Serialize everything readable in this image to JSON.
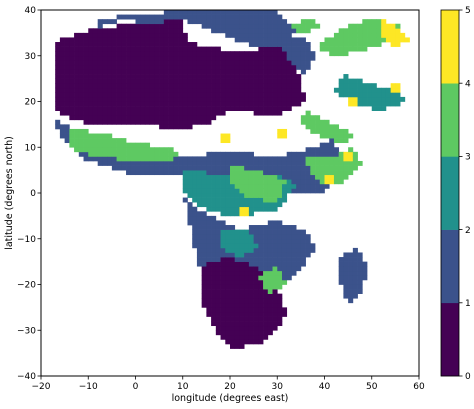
{
  "chart_data": {
    "type": "heatmap",
    "title": "",
    "xlabel": "longitude (degrees east)",
    "ylabel": "latitude (degrees north)",
    "xlim": [
      -20,
      60
    ],
    "ylim": [
      -40,
      40
    ],
    "xticks": [
      -20,
      -10,
      0,
      10,
      20,
      30,
      40,
      50,
      60
    ],
    "yticks": [
      -40,
      -30,
      -20,
      -10,
      0,
      10,
      20,
      30,
      40
    ],
    "colorbar": {
      "min": 0,
      "max": 5,
      "ticks": [
        0,
        1,
        2,
        3,
        4,
        5
      ],
      "levels": 5
    },
    "colors": [
      "#440154",
      "#3b528b",
      "#21918c",
      "#5ec962",
      "#fde725"
    ],
    "cell_size_deg": 1.0,
    "grid": false,
    "legend": "colorbar-right",
    "description_note": "",
    "regions": [
      {
        "class": 0,
        "polygon": [
          [
            -17,
            33
          ],
          [
            -8,
            36
          ],
          [
            10,
            38
          ],
          [
            11,
            33
          ],
          [
            20,
            31
          ],
          [
            32,
            32
          ],
          [
            34,
            28
          ],
          [
            36,
            20
          ],
          [
            30,
            17
          ],
          [
            20,
            18
          ],
          [
            15,
            15
          ],
          [
            10,
            14
          ],
          [
            0,
            15
          ],
          [
            -10,
            15
          ],
          [
            -17,
            18
          ],
          [
            -17,
            28
          ]
        ]
      },
      {
        "class": 1,
        "polygon": [
          [
            -8,
            36
          ],
          [
            -2,
            38
          ],
          [
            10,
            38
          ],
          [
            20,
            34
          ],
          [
            25,
            32
          ],
          [
            32,
            32
          ],
          [
            34,
            36
          ],
          [
            30,
            40
          ],
          [
            12,
            40
          ],
          [
            0,
            39
          ],
          [
            -8,
            38
          ]
        ]
      },
      {
        "class": 1,
        "polygon": [
          [
            -17,
            16
          ],
          [
            -10,
            12
          ],
          [
            0,
            10
          ],
          [
            10,
            8
          ],
          [
            20,
            9
          ],
          [
            30,
            8
          ],
          [
            38,
            10
          ],
          [
            42,
            12
          ],
          [
            44,
            5
          ],
          [
            40,
            0
          ],
          [
            32,
            0
          ],
          [
            20,
            3
          ],
          [
            10,
            4
          ],
          [
            0,
            4
          ],
          [
            -10,
            7
          ],
          [
            -16,
            12
          ]
        ]
      },
      {
        "class": 2,
        "polygon": [
          [
            10,
            5
          ],
          [
            20,
            4
          ],
          [
            30,
            4
          ],
          [
            34,
            2
          ],
          [
            30,
            -4
          ],
          [
            20,
            -5
          ],
          [
            14,
            -3
          ],
          [
            10,
            0
          ]
        ]
      },
      {
        "class": 1,
        "polygon": [
          [
            10,
            0
          ],
          [
            14,
            -4
          ],
          [
            22,
            -8
          ],
          [
            30,
            -6
          ],
          [
            36,
            -8
          ],
          [
            38,
            -12
          ],
          [
            34,
            -18
          ],
          [
            30,
            -22
          ],
          [
            25,
            -26
          ],
          [
            20,
            -24
          ],
          [
            14,
            -18
          ],
          [
            12,
            -10
          ],
          [
            11,
            -4
          ]
        ]
      },
      {
        "class": 0,
        "polygon": [
          [
            14,
            -16
          ],
          [
            20,
            -14
          ],
          [
            26,
            -16
          ],
          [
            30,
            -20
          ],
          [
            32,
            -26
          ],
          [
            30,
            -30
          ],
          [
            26,
            -33
          ],
          [
            20,
            -34
          ],
          [
            17,
            -30
          ],
          [
            14,
            -24
          ]
        ]
      },
      {
        "class": 3,
        "polygon": [
          [
            -14,
            14
          ],
          [
            -6,
            13
          ],
          [
            0,
            11
          ],
          [
            6,
            10
          ],
          [
            10,
            9
          ],
          [
            8,
            7
          ],
          [
            0,
            7
          ],
          [
            -8,
            8
          ],
          [
            -14,
            10
          ]
        ]
      },
      {
        "class": 3,
        "polygon": [
          [
            20,
            6
          ],
          [
            26,
            5
          ],
          [
            32,
            3
          ],
          [
            30,
            -2
          ],
          [
            24,
            -1
          ],
          [
            20,
            2
          ]
        ]
      },
      {
        "class": 3,
        "polygon": [
          [
            36,
            8
          ],
          [
            42,
            8
          ],
          [
            46,
            10
          ],
          [
            48,
            6
          ],
          [
            44,
            2
          ],
          [
            40,
            2
          ],
          [
            37,
            4
          ]
        ]
      },
      {
        "class": 3,
        "polygon": [
          [
            36,
            18
          ],
          [
            40,
            16
          ],
          [
            44,
            14
          ],
          [
            47,
            12
          ],
          [
            43,
            11
          ],
          [
            38,
            13
          ],
          [
            35,
            16
          ]
        ]
      },
      {
        "class": 3,
        "polygon": [
          [
            38,
            32
          ],
          [
            44,
            36
          ],
          [
            50,
            38
          ],
          [
            56,
            37
          ],
          [
            54,
            33
          ],
          [
            48,
            31
          ],
          [
            42,
            30
          ]
        ]
      },
      {
        "class": 2,
        "polygon": [
          [
            44,
            26
          ],
          [
            50,
            24
          ],
          [
            56,
            22
          ],
          [
            58,
            20
          ],
          [
            52,
            18
          ],
          [
            46,
            20
          ],
          [
            42,
            22
          ]
        ]
      },
      {
        "class": 1,
        "polygon": [
          [
            43,
            -14
          ],
          [
            47,
            -12
          ],
          [
            49,
            -16
          ],
          [
            48,
            -22
          ],
          [
            46,
            -24
          ],
          [
            44,
            -22
          ],
          [
            43,
            -18
          ]
        ]
      },
      {
        "class": 1,
        "polygon": [
          [
            30,
            34
          ],
          [
            36,
            34
          ],
          [
            38,
            30
          ],
          [
            36,
            26
          ],
          [
            33,
            28
          ]
        ]
      },
      {
        "class": 4,
        "polygon": [
          [
            52,
            38
          ],
          [
            56,
            36
          ],
          [
            58,
            33
          ],
          [
            55,
            32
          ],
          [
            52,
            34
          ]
        ]
      },
      {
        "class": 4,
        "polygon": [
          [
            44,
            9
          ],
          [
            46,
            9
          ],
          [
            46,
            7
          ],
          [
            44,
            7
          ]
        ]
      },
      {
        "class": 4,
        "polygon": [
          [
            30,
            14
          ],
          [
            32,
            14
          ],
          [
            32,
            12
          ],
          [
            30,
            12
          ]
        ]
      },
      {
        "class": 4,
        "polygon": [
          [
            40,
            4
          ],
          [
            42,
            4
          ],
          [
            42,
            2
          ],
          [
            40,
            2
          ]
        ]
      },
      {
        "class": 4,
        "polygon": [
          [
            22,
            -3
          ],
          [
            24,
            -3
          ],
          [
            24,
            -5
          ],
          [
            22,
            -5
          ]
        ]
      },
      {
        "class": 4,
        "polygon": [
          [
            18,
            13
          ],
          [
            20,
            13
          ],
          [
            20,
            11
          ],
          [
            18,
            11
          ]
        ]
      },
      {
        "class": 4,
        "polygon": [
          [
            45,
            21
          ],
          [
            47,
            21
          ],
          [
            47,
            19
          ],
          [
            45,
            19
          ]
        ]
      },
      {
        "class": 4,
        "polygon": [
          [
            54,
            24
          ],
          [
            56,
            24
          ],
          [
            56,
            22
          ],
          [
            54,
            22
          ]
        ]
      },
      {
        "class": 2,
        "polygon": [
          [
            18,
            -8
          ],
          [
            24,
            -8
          ],
          [
            26,
            -12
          ],
          [
            22,
            -14
          ],
          [
            18,
            -12
          ]
        ]
      },
      {
        "class": 3,
        "polygon": [
          [
            26,
            -18
          ],
          [
            30,
            -16
          ],
          [
            32,
            -20
          ],
          [
            28,
            -22
          ]
        ]
      },
      {
        "class": 1,
        "polygon": [
          [
            -3,
            38
          ],
          [
            3,
            39
          ],
          [
            10,
            40
          ],
          [
            10,
            38
          ],
          [
            3,
            37
          ]
        ]
      },
      {
        "class": 1,
        "polygon": [
          [
            13,
            40
          ],
          [
            20,
            40
          ],
          [
            18,
            38
          ],
          [
            13,
            38
          ]
        ]
      },
      {
        "class": 3,
        "polygon": [
          [
            32,
            37
          ],
          [
            38,
            38
          ],
          [
            40,
            36
          ],
          [
            35,
            35
          ]
        ]
      }
    ]
  }
}
